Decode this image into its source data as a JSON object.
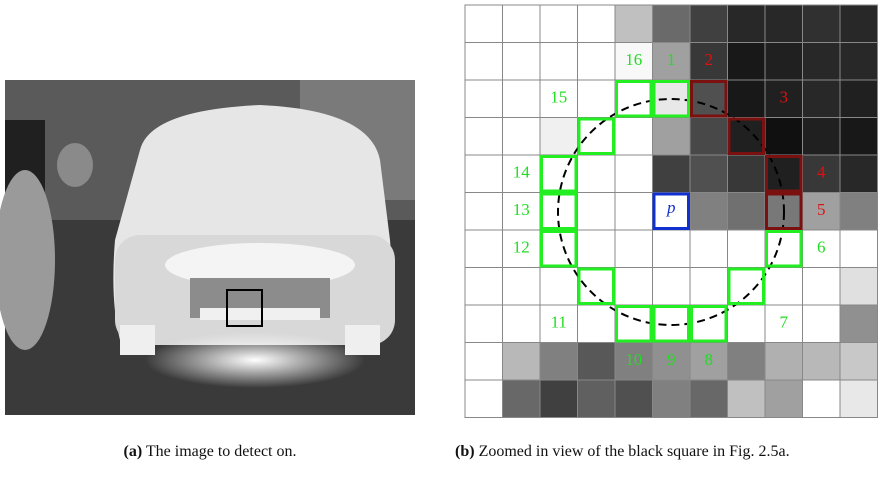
{
  "panel_a": {
    "caption_tag": "(a)",
    "caption": "The image to detect on."
  },
  "panel_b": {
    "caption_tag": "(b)",
    "caption": "Zoomed in view of the black square in Fig. 2.5a.",
    "center_label": "p",
    "circle_labels": [
      "1",
      "2",
      "3",
      "4",
      "5",
      "6",
      "7",
      "8",
      "9",
      "10",
      "11",
      "12",
      "13",
      "14",
      "15",
      "16"
    ]
  }
}
